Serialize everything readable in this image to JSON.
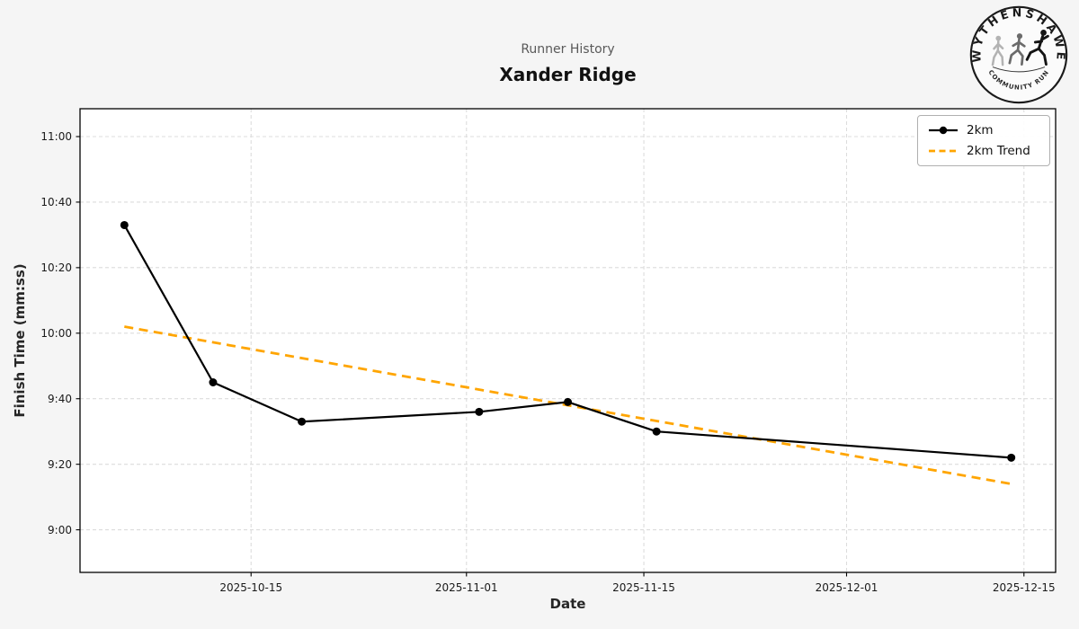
{
  "header": {
    "subtitle": "Runner History",
    "title": "Xander Ridge"
  },
  "logo": {
    "top_text": "WYTHENSHAWE",
    "bottom_text": "COMMUNITY RUN"
  },
  "colors": {
    "figure_background": "#f5f5f5",
    "plot_background": "#ffffff",
    "grid": "#dcdcdc",
    "spine": "#000000",
    "series_line": "#000000",
    "trend_line": "#FFA500",
    "subtitle_text": "#595959",
    "title_text": "#111111"
  },
  "chart_data": {
    "type": "line",
    "suptitle": "Runner History",
    "title": "Xander Ridge",
    "xlabel": "Date",
    "ylabel": "Finish Time (mm:ss)",
    "grid": true,
    "legend_position": "upper right",
    "x": [
      "2025-10-05",
      "2025-10-12",
      "2025-10-19",
      "2025-11-02",
      "2025-11-09",
      "2025-11-16",
      "2025-12-14"
    ],
    "series": [
      {
        "name": "2km",
        "color": "#000000",
        "line_style": "solid",
        "marker": "circle",
        "values_mmss": [
          "10:33",
          "9:45",
          "9:33",
          "9:36",
          "9:39",
          "9:30",
          "9:22"
        ],
        "values_seconds": [
          633,
          585,
          573,
          576,
          579,
          570,
          562
        ]
      },
      {
        "name": "2km Trend",
        "color": "#FFA500",
        "line_style": "dashed",
        "marker": "none",
        "trend_start": {
          "date": "2025-10-05",
          "mmss": "10:02",
          "seconds": 602
        },
        "trend_end": {
          "date": "2025-12-14",
          "mmss": "9:14",
          "seconds": 554
        }
      }
    ],
    "x_ticks": [
      {
        "date": "2025-10-15",
        "label": "2025-10-15"
      },
      {
        "date": "2025-11-01",
        "label": "2025-11-01"
      },
      {
        "date": "2025-11-15",
        "label": "2025-11-15"
      },
      {
        "date": "2025-12-01",
        "label": "2025-12-01"
      },
      {
        "date": "2025-12-15",
        "label": "2025-12-15"
      }
    ],
    "y_ticks": [
      {
        "label": "9:00",
        "seconds": 540
      },
      {
        "label": "9:20",
        "seconds": 560
      },
      {
        "label": "9:40",
        "seconds": 580
      },
      {
        "label": "10:00",
        "seconds": 600
      },
      {
        "label": "10:20",
        "seconds": 620
      },
      {
        "label": "10:40",
        "seconds": 640
      },
      {
        "label": "11:00",
        "seconds": 660
      }
    ],
    "x_domain_days_from_first": [
      -3.5,
      73.5
    ],
    "y_domain_seconds": [
      527,
      668.5
    ]
  }
}
